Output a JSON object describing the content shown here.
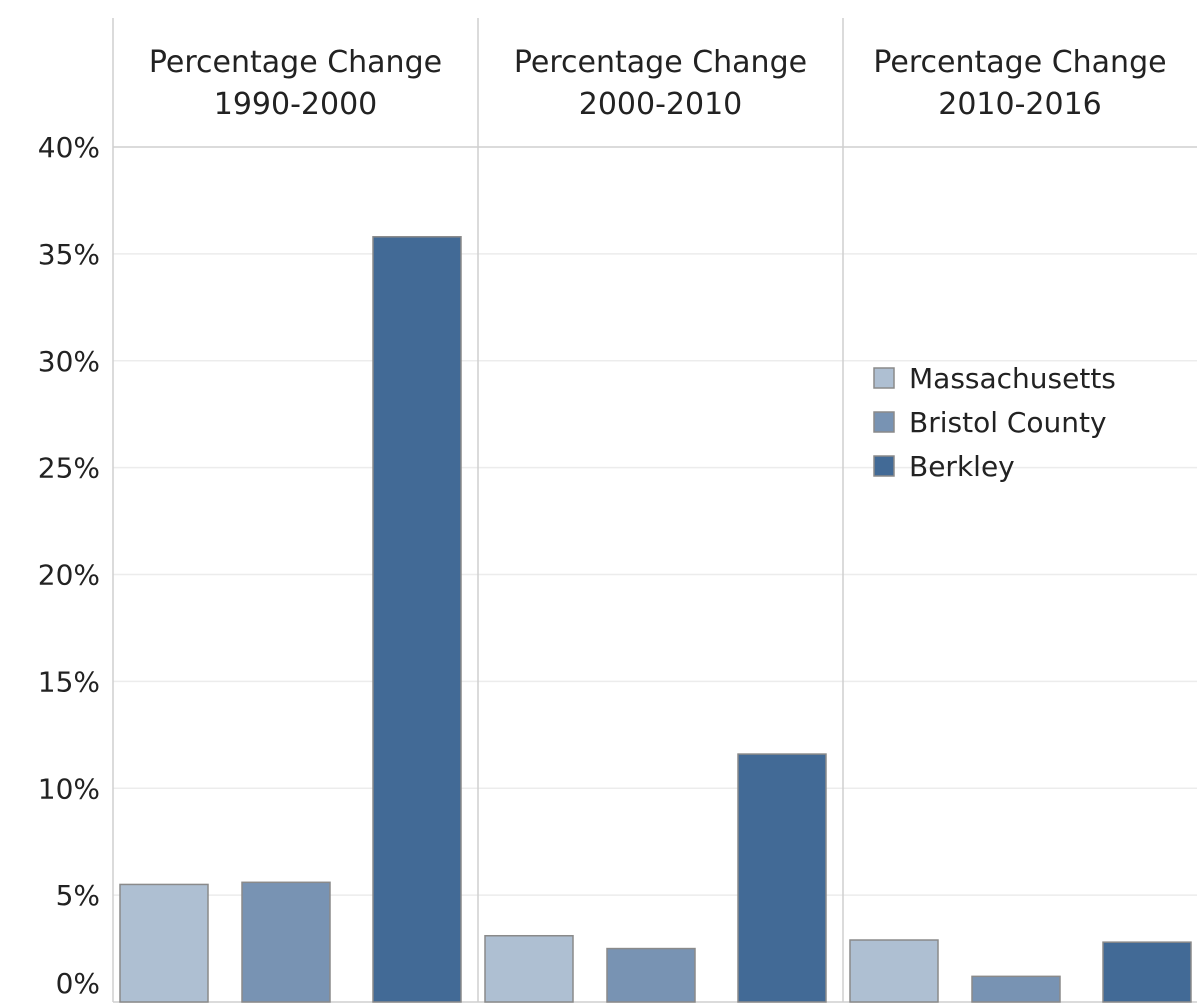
{
  "chart_data": {
    "type": "bar",
    "panels": [
      {
        "title_line1": "Percentage Change",
        "title_line2": "1990-2000",
        "values": [
          5.5,
          5.6,
          35.8
        ]
      },
      {
        "title_line1": "Percentage Change",
        "title_line2": "2000-2010",
        "values": [
          3.1,
          2.5,
          11.6
        ]
      },
      {
        "title_line1": "Percentage Change",
        "title_line2": "2010-2016",
        "values": [
          2.9,
          1.2,
          2.8
        ]
      }
    ],
    "series": [
      {
        "name": "Massachusetts",
        "color": "#aebfd2"
      },
      {
        "name": "Bristol County",
        "color": "#7893b3"
      },
      {
        "name": "Berkley",
        "color": "#426a96"
      }
    ],
    "yticks": [
      {
        "value": 0,
        "label": "0%"
      },
      {
        "value": 5,
        "label": "5%"
      },
      {
        "value": 10,
        "label": "10%"
      },
      {
        "value": 15,
        "label": "15%"
      },
      {
        "value": 20,
        "label": "20%"
      },
      {
        "value": 25,
        "label": "25%"
      },
      {
        "value": 30,
        "label": "30%"
      },
      {
        "value": 35,
        "label": "35%"
      },
      {
        "value": 40,
        "label": "40%"
      }
    ],
    "ylim": [
      0,
      40
    ],
    "grid": true,
    "legend_position": "right"
  }
}
